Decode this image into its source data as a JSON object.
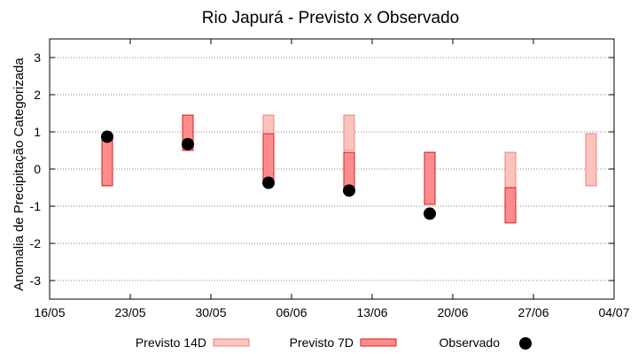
{
  "chart_data": {
    "type": "floating-bar",
    "title": "Rio Japurá - Previsto x Observado",
    "xlabel": "",
    "ylabel": "Anomalia de Precipitação Categorizada",
    "ylim": [
      -3.5,
      3.5
    ],
    "yticks": [
      3,
      2,
      1,
      0,
      -1,
      -2,
      -3
    ],
    "x_domain": [
      0,
      49
    ],
    "x_ticks": [
      {
        "x": 0,
        "label": "16/05"
      },
      {
        "x": 7,
        "label": "23/05"
      },
      {
        "x": 14,
        "label": "30/05"
      },
      {
        "x": 21,
        "label": "06/06"
      },
      {
        "x": 28,
        "label": "13/06"
      },
      {
        "x": 35,
        "label": "20/06"
      },
      {
        "x": 42,
        "label": "27/06"
      },
      {
        "x": 49,
        "label": "04/07"
      }
    ],
    "grid": true,
    "legend_position": "bottom",
    "series": [
      {
        "name": "Previsto 14D",
        "color": "#fbc3be",
        "stroke": "#e8827c",
        "type": "range",
        "points": [
          {
            "x": 5,
            "low": -0.45,
            "high": 0.85
          },
          {
            "x": 12,
            "low": 0.5,
            "high": 1.45
          },
          {
            "x": 19,
            "low": 0.5,
            "high": 1.45
          },
          {
            "x": 26,
            "low": 0.5,
            "high": 1.45
          },
          {
            "x": 33,
            "low": -0.95,
            "high": 0.45
          },
          {
            "x": 40,
            "low": -0.95,
            "high": 0.45
          },
          {
            "x": 47,
            "low": -0.45,
            "high": 0.95
          }
        ]
      },
      {
        "name": "Previsto 7D",
        "color": "#ff8c8c",
        "stroke": "#d11f1f",
        "type": "range",
        "points": [
          {
            "x": 5,
            "low": -0.45,
            "high": 0.85
          },
          {
            "x": 12,
            "low": 0.5,
            "high": 1.45
          },
          {
            "x": 19,
            "low": -0.35,
            "high": 0.95
          },
          {
            "x": 26,
            "low": -0.5,
            "high": 0.45
          },
          {
            "x": 33,
            "low": -0.95,
            "high": 0.45
          },
          {
            "x": 40,
            "low": -1.45,
            "high": -0.5
          }
        ]
      },
      {
        "name": "Observado",
        "color": "#000000",
        "type": "scatter",
        "points": [
          {
            "x": 5,
            "y": 0.87
          },
          {
            "x": 12,
            "y": 0.67
          },
          {
            "x": 19,
            "y": -0.37
          },
          {
            "x": 26,
            "y": -0.58
          },
          {
            "x": 33,
            "y": -1.2
          }
        ]
      }
    ]
  }
}
